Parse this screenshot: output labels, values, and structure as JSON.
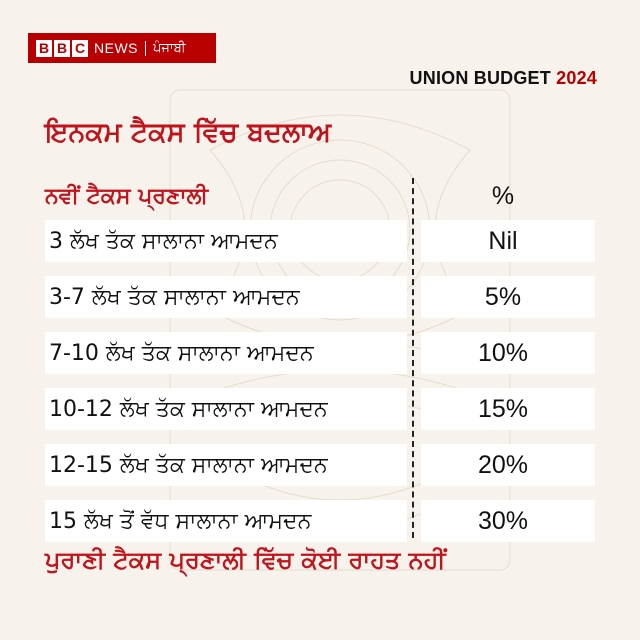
{
  "brand": {
    "blocks": [
      "B",
      "B",
      "C"
    ],
    "news": "NEWS",
    "language": "ਪੰਜਾਬੀ",
    "color": "#b80000"
  },
  "budget": {
    "label": "UNION BUDGET",
    "year": "2024"
  },
  "heading": "ਇਨਕਮ ਟੈਕਸ ਵਿੱਚ ਬਦਲਾਅ",
  "table": {
    "header_label": "ਨਵੀਂ ਟੈਕਸ ਪ੍ਰਣਾਲੀ",
    "header_rate": "%",
    "rows": [
      {
        "label": "3 ਲੱਖ ਤੱਕ ਸਾਲਾਨਾ ਆਮਦਨ",
        "rate": "Nil"
      },
      {
        "label": "3-7 ਲੱਖ ਤੱਕ ਸਾਲਾਨਾ ਆਮਦਨ",
        "rate": "5%"
      },
      {
        "label": "7-10 ਲੱਖ ਤੱਕ ਸਾਲਾਨਾ ਆਮਦਨ",
        "rate": "10%"
      },
      {
        "label": "10-12 ਲੱਖ ਤੱਕ ਸਾਲਾਨਾ ਆਮਦਨ",
        "rate": "15%"
      },
      {
        "label": "12-15 ਲੱਖ ਤੱਕ ਸਾਲਾਨਾ ਆਮਦਨ",
        "rate": "20%"
      },
      {
        "label": "15 ਲੱਖ ਤੋਂ ਵੱਧ ਸਾਲਾਨਾ ਆਮਦਨ",
        "rate": "30%"
      }
    ]
  },
  "footer": "ਪੁਰਾਣੀ ਟੈਕਸ ਪ੍ਰਣਾਲੀ ਵਿੱਚ ਕੋਈ ਰਾਹਤ ਨਹੀਂ",
  "colors": {
    "accent_red": "#c0141c",
    "background": "#f7f3ec",
    "text": "#111111"
  },
  "icons": {
    "watermark": "banknote-pattern-watermark"
  }
}
